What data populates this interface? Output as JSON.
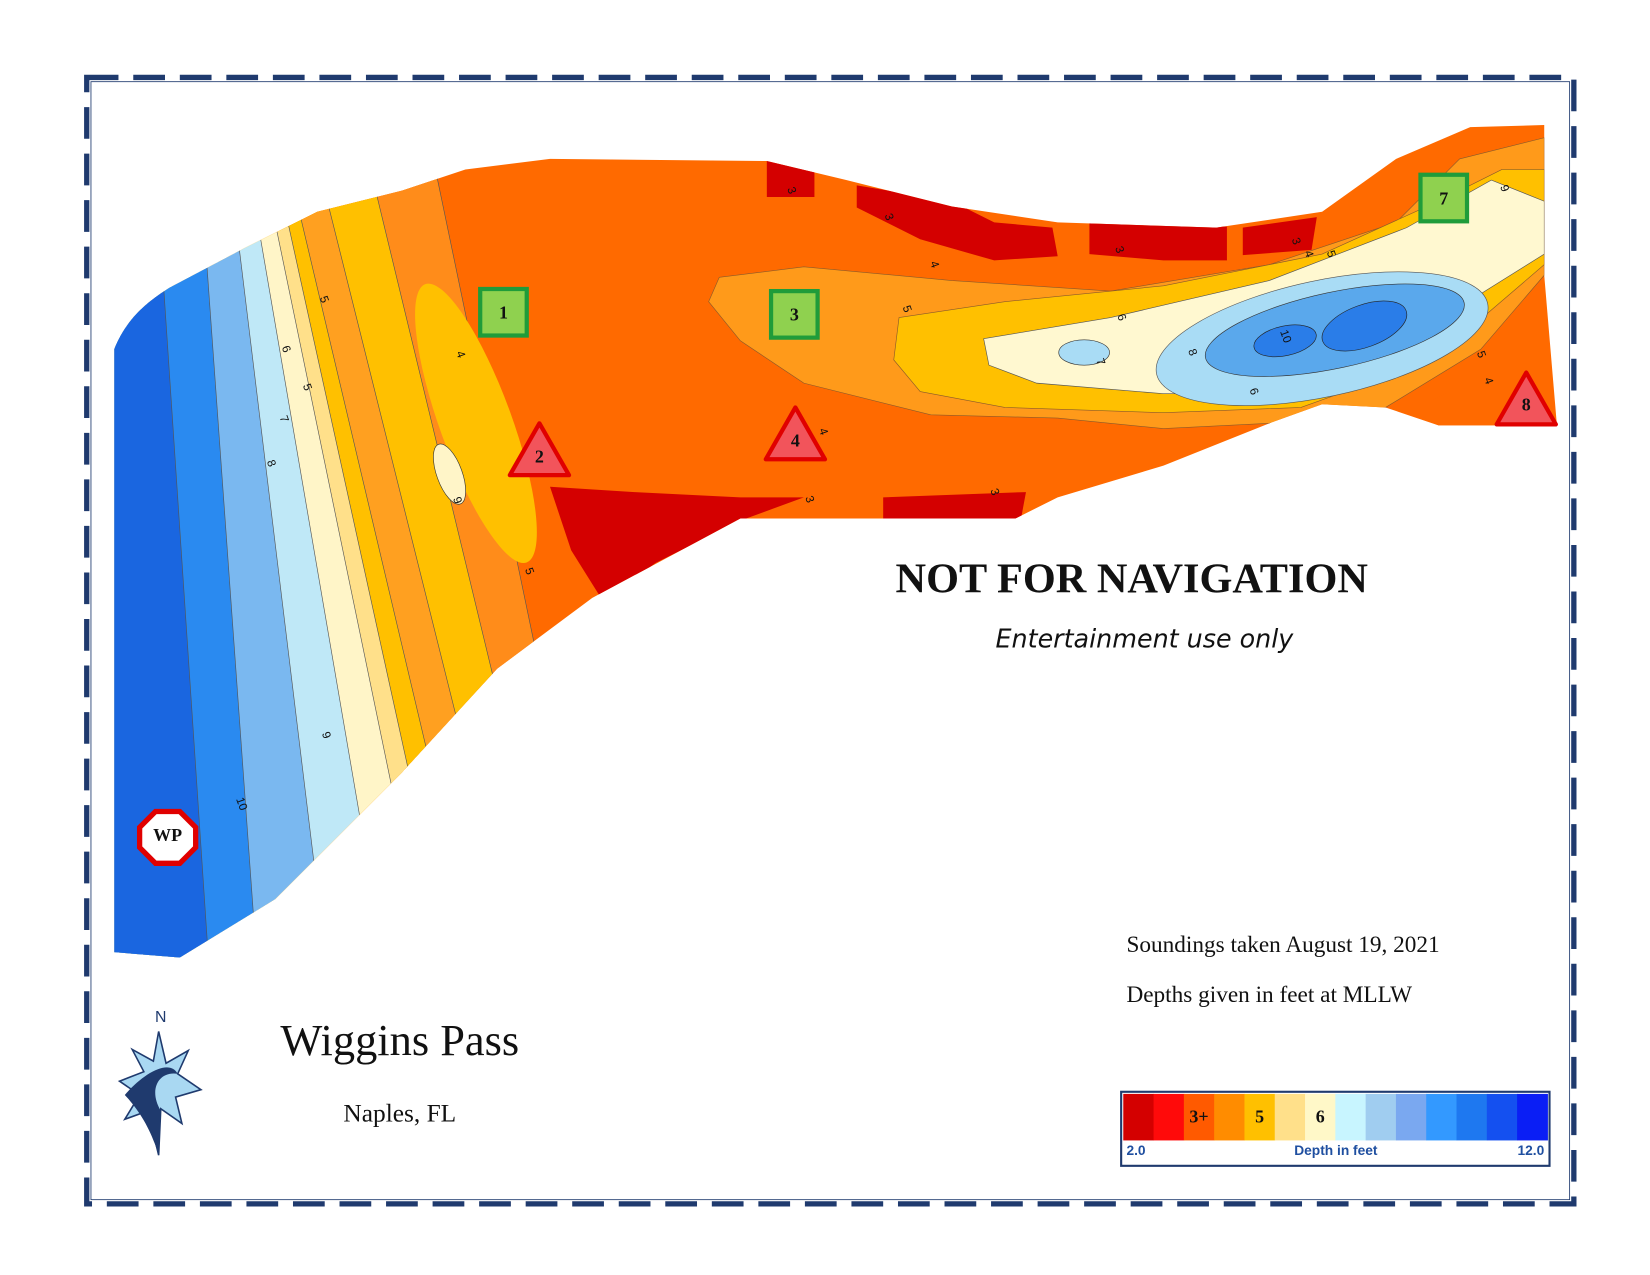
{
  "title": "Wiggins Pass",
  "subtitle": "Naples, FL",
  "warning": "NOT FOR NAVIGATION",
  "disclaimer": "Entertainment use only",
  "notes": [
    "Soundings taken August 19, 2021",
    "Depths given in feet at MLLW"
  ],
  "compass": "N",
  "markers": {
    "green": [
      "1",
      "3",
      "7"
    ],
    "red": [
      "2",
      "4",
      "8"
    ],
    "start": "WP"
  },
  "legend": {
    "colors": [
      "#d40000",
      "#ff0a0a",
      "#ff5a00",
      "#ff8c00",
      "#ffc000",
      "#ffe08a",
      "#fff8c8",
      "#c8f5ff",
      "#a0cdf0",
      "#7aa8f0",
      "#3399ff",
      "#1e78f0",
      "#1450f0",
      "#0a1ef5"
    ],
    "swatch_labels": [
      "3+",
      "5",
      "6"
    ],
    "min": "2.0",
    "label": "Depth in feet",
    "max": "12.0"
  },
  "contour_labels": [
    3,
    3,
    3,
    3,
    3,
    3,
    4,
    4,
    4,
    4,
    4,
    5,
    5,
    5,
    5,
    5,
    5,
    6,
    6,
    6,
    7,
    7,
    8,
    8,
    9,
    9,
    9,
    10,
    10
  ]
}
